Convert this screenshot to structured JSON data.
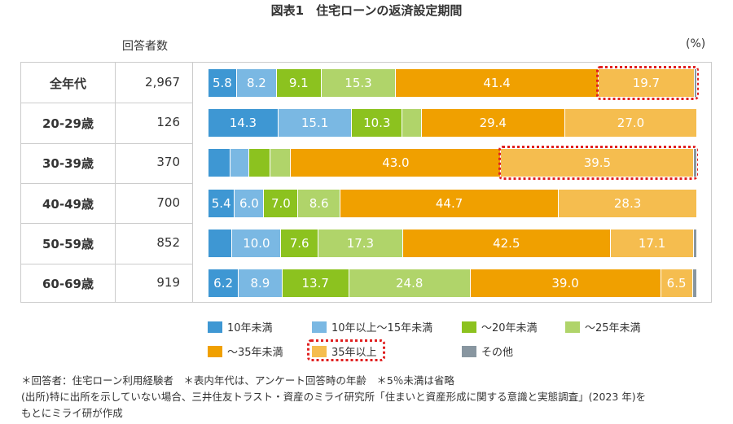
{
  "chart_data": {
    "type": "bar",
    "orientation": "horizontal-stacked-100",
    "title": "図表1　住宅ローンの返済設定期間",
    "count_header": "回答者数",
    "unit": "(%)",
    "categories": [
      "全年代",
      "20-29歳",
      "30-39歳",
      "40-49歳",
      "50-59歳",
      "60-69歳"
    ],
    "respondents": [
      "2,967",
      "126",
      "370",
      "700",
      "852",
      "919"
    ],
    "series": [
      {
        "name": "10年未満",
        "color": "#3e97d3",
        "values": [
          5.8,
          14.3,
          4.5,
          5.4,
          4.9,
          6.2
        ]
      },
      {
        "name": "10年以上〜15年未満",
        "color": "#7ab8e3",
        "values": [
          8.2,
          15.1,
          3.9,
          6.0,
          10.0,
          8.9
        ]
      },
      {
        "name": "〜20年未満",
        "color": "#8cc21f",
        "values": [
          9.1,
          10.3,
          4.3,
          7.0,
          7.6,
          13.7
        ]
      },
      {
        "name": "〜25年未満",
        "color": "#b0d46a",
        "values": [
          15.3,
          3.9,
          4.2,
          8.6,
          17.3,
          24.8
        ]
      },
      {
        "name": "〜35年未満",
        "color": "#f0a000",
        "values": [
          41.4,
          29.4,
          43.0,
          44.7,
          42.5,
          39.0
        ]
      },
      {
        "name": "35年以上",
        "color": "#f5bd4f",
        "values": [
          19.7,
          27.0,
          39.5,
          28.3,
          17.1,
          6.5
        ]
      },
      {
        "name": "その他",
        "color": "#8896a0",
        "values": [
          0.5,
          0,
          0.6,
          0,
          0.6,
          0.9
        ]
      }
    ],
    "highlighted": [
      {
        "category": "全年代",
        "series": "35年以上"
      },
      {
        "category": "30-39歳",
        "series": "35年以上"
      }
    ],
    "label_threshold": 5,
    "xlim": [
      0,
      100
    ],
    "legend_placement": "bottom",
    "highlight_color": "#e02020"
  },
  "notes": [
    "＊回答者：住宅ローン利用経験者　＊表内年代は、アンケート回答時の年齢　＊5％未満は省略",
    "(出所)特に出所を示していない場合、三井住友トラスト・資産のミライ研究所「住まいと資産形成に関する意識と実態調査」(2023 年)を",
    "もとにミライ研が作成"
  ]
}
